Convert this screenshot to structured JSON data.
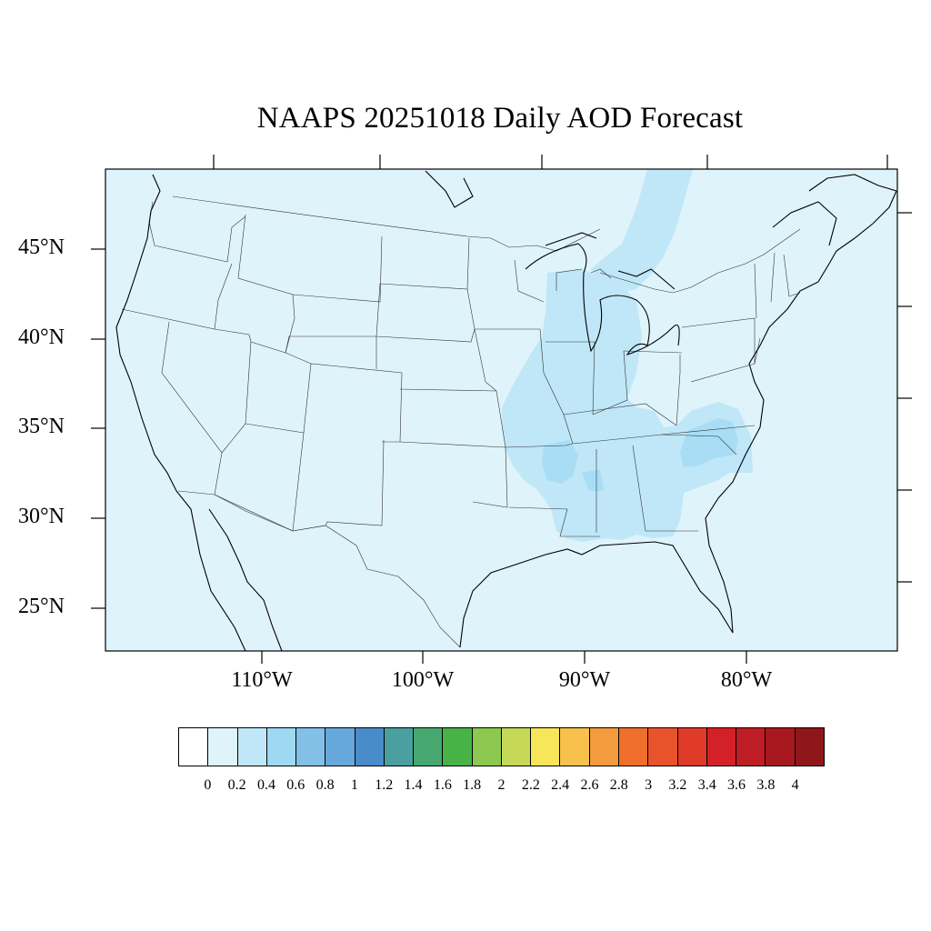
{
  "title": "NAAPS 20251018 Daily AOD Forecast",
  "latitude_labels": [
    "45°N",
    "40°N",
    "35°N",
    "30°N",
    "25°N"
  ],
  "longitude_labels": [
    "110°W",
    "100°W",
    "90°W",
    "80°W"
  ],
  "colorbar": {
    "colors": [
      "#ffffff",
      "#dff3fb",
      "#bfe7f7",
      "#9fd8f3",
      "#82c0e7",
      "#66a8dc",
      "#4a8cca",
      "#4aa0a0",
      "#47a86f",
      "#47b347",
      "#8cc74f",
      "#c6d857",
      "#f7e65a",
      "#f7c14b",
      "#f59b3f",
      "#f06e2b",
      "#e9532b",
      "#e03a29",
      "#d42028",
      "#bf1e26",
      "#a8191f",
      "#8f161b"
    ],
    "tick_labels": [
      "0",
      "0.2",
      "0.4",
      "0.6",
      "0.8",
      "1",
      "1.2",
      "1.4",
      "1.6",
      "1.8",
      "2",
      "2.2",
      "2.4",
      "2.6",
      "2.8",
      "3",
      "3.2",
      "3.4",
      "3.6",
      "3.8",
      "4"
    ]
  },
  "map": {
    "background_color": "#dff3fb",
    "plume_colors": {
      "light": "#bfe7f7",
      "medium": "#a8ddf5"
    }
  }
}
